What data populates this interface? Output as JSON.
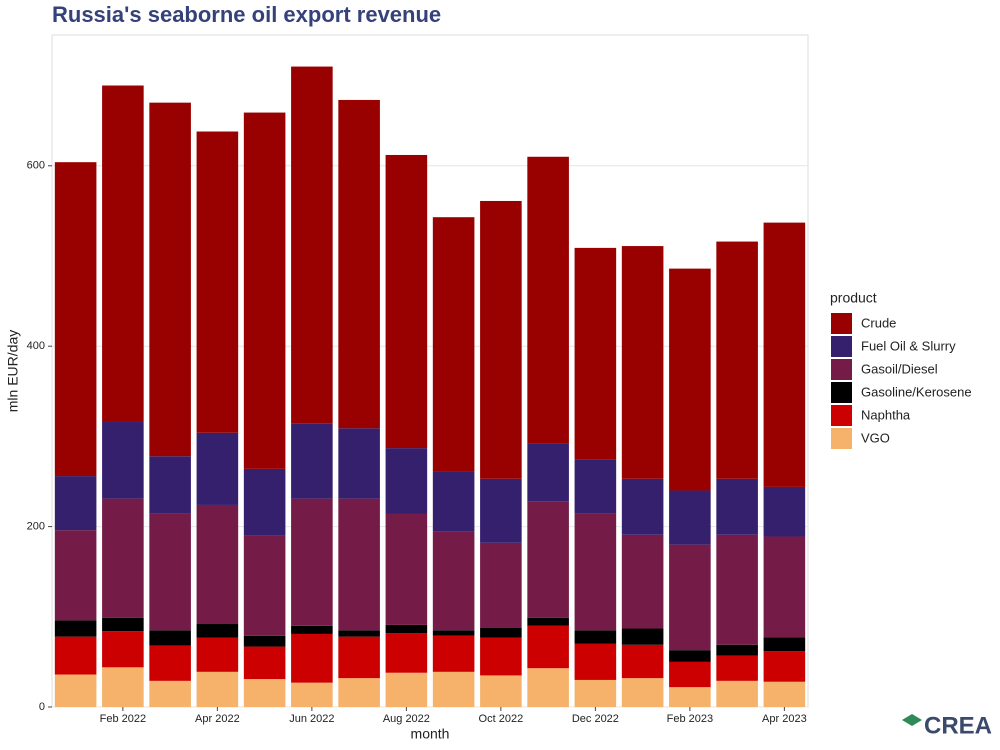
{
  "chart_data": {
    "type": "stacked_bar",
    "title": "Russia's seaborne oil export revenue",
    "x_label": "month",
    "y_label": "mln EUR/day",
    "legend_title": "product",
    "legend_position": "right",
    "categories": [
      null,
      "Feb 2022",
      null,
      "Apr 2022",
      null,
      "Jun 2022",
      null,
      "Aug 2022",
      null,
      "Oct 2022",
      null,
      "Dec 2022",
      null,
      "Feb 2023",
      null,
      "Apr 2023"
    ],
    "series": [
      {
        "name": "Crude",
        "color": "#990000",
        "values": [
          348,
          373,
          392,
          334,
          395,
          396,
          364,
          325,
          282,
          308,
          318,
          235,
          258,
          246,
          263,
          293
        ]
      },
      {
        "name": "Fuel Oil & Slurry",
        "color": "#35206e",
        "values": [
          60,
          85,
          63,
          80,
          74,
          83,
          78,
          73,
          66,
          71,
          64,
          59,
          62,
          60,
          62,
          55
        ]
      },
      {
        "name": "Gasoil/Diesel",
        "color": "#741b47",
        "values": [
          100,
          132,
          130,
          132,
          111,
          141,
          146,
          123,
          110,
          94,
          129,
          130,
          104,
          117,
          122,
          112
        ]
      },
      {
        "name": "Gasoline/Kerosene",
        "color": "#000000",
        "values": [
          18,
          15,
          17,
          15,
          12,
          9,
          7,
          9,
          6,
          11,
          9,
          15,
          18,
          13,
          12,
          15
        ]
      },
      {
        "name": "Naphtha",
        "color": "#cc0000",
        "values": [
          42,
          40,
          39,
          38,
          36,
          54,
          46,
          44,
          40,
          42,
          47,
          40,
          37,
          28,
          28,
          34
        ]
      },
      {
        "name": "VGO",
        "color": "#f6b26b",
        "values": [
          36,
          44,
          29,
          39,
          31,
          27,
          32,
          38,
          39,
          35,
          43,
          30,
          32,
          22,
          29,
          28
        ]
      }
    ],
    "ylim": [
      0,
      745
    ],
    "yticks": [
      0,
      200,
      400,
      600
    ],
    "grid": true,
    "logo": "CREA"
  }
}
